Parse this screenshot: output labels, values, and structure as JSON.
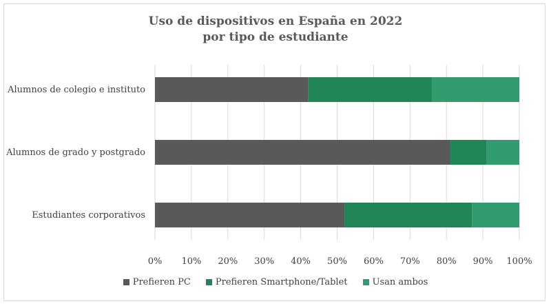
{
  "chart_data": {
    "type": "bar",
    "orientation": "horizontal",
    "stacked": "percent",
    "title_lines": [
      "Uso de dispositivos en España en 2022",
      "por tipo de estudiante"
    ],
    "categories": [
      "Alumnos de colegio e instituto",
      "Alumnos de grado y postgrado",
      "Estudiantes corporativos"
    ],
    "series": [
      {
        "name": "Prefieren PC",
        "color": "#595959",
        "values": [
          42,
          81,
          52
        ]
      },
      {
        "name": "Prefieren Smartphone/Tablet",
        "color": "#218557",
        "values": [
          34,
          10,
          35
        ]
      },
      {
        "name": "Usan ambos",
        "color": "#339c6f",
        "values": [
          24,
          9,
          13
        ]
      }
    ],
    "xlim": [
      0,
      100
    ],
    "xticks": [
      "0%",
      "10%",
      "20%",
      "30%",
      "40%",
      "50%",
      "60%",
      "70%",
      "80%",
      "90%",
      "100%"
    ],
    "xlabel": "",
    "ylabel": "",
    "grid": "vertical",
    "legend_position": "bottom"
  }
}
